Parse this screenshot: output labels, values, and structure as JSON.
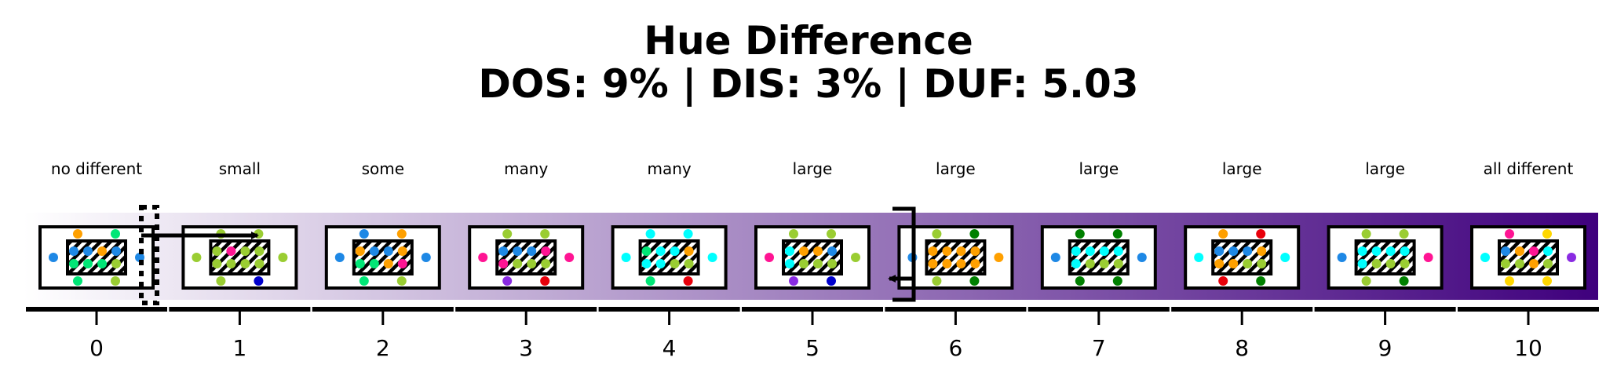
{
  "title": "Hue Difference",
  "subtitle": "DOS: 9% | DIS: 3% | DUF: 5.03",
  "gradient": {
    "start_color": "#ffffff",
    "end_color": "#3f007d"
  },
  "scale": [
    {
      "tick": "0",
      "label": "no different",
      "center": [
        "#1e88e5",
        "#1e88e5",
        "#ffa000",
        "#1e88e5",
        "#00e676",
        "#00e676",
        "#00e676",
        "#9acd32"
      ],
      "outer": {
        "left": "#1e88e5",
        "right": "#1e88e5",
        "top": [
          "#ffa000",
          "#00e676"
        ],
        "bottom": [
          "#00e676",
          "#9acd32"
        ]
      }
    },
    {
      "tick": "1",
      "label": "small",
      "center": [
        "#9acd32",
        "#ff1493",
        "#9acd32",
        "#9acd32",
        "#9acd32",
        "#9acd32",
        "#9acd32",
        "#9acd32"
      ],
      "outer": {
        "left": "#9acd32",
        "right": "#9acd32",
        "top": [
          "#9acd32",
          "#9acd32"
        ],
        "bottom": [
          "#9acd32",
          "#0000cd"
        ]
      }
    },
    {
      "tick": "2",
      "label": "some",
      "center": [
        "#ffa000",
        "#1e88e5",
        "#1e88e5",
        "#ffa000",
        "#00e676",
        "#00e676",
        "#ffa000",
        "#ff1493"
      ],
      "outer": {
        "left": "#1e88e5",
        "right": "#1e88e5",
        "top": [
          "#1e88e5",
          "#ffa000"
        ],
        "bottom": [
          "#00e676",
          "#9acd32"
        ]
      }
    },
    {
      "tick": "3",
      "label": "many",
      "center": [
        "#1e88e5",
        "#1e88e5",
        "#1e88e5",
        "#ff1493",
        "#ff1493",
        "#9acd32",
        "#9acd32",
        "#9acd32"
      ],
      "outer": {
        "left": "#ff1493",
        "right": "#ff1493",
        "top": [
          "#9acd32",
          "#9acd32"
        ],
        "bottom": [
          "#8a2be2",
          "#e8000b"
        ]
      }
    },
    {
      "tick": "4",
      "label": "many",
      "center": [
        "#00e676",
        "#00ffff",
        "#00ffff",
        "#ffa000",
        "#00ffff",
        "#00ffff",
        "#9acd32",
        "#9acd32"
      ],
      "outer": {
        "left": "#00ffff",
        "right": "#00ffff",
        "top": [
          "#00ffff",
          "#00ffff"
        ],
        "bottom": [
          "#00e676",
          "#e8000b"
        ]
      }
    },
    {
      "tick": "5",
      "label": "large",
      "center": [
        "#00ffff",
        "#ffa000",
        "#ffa000",
        "#1e88e5",
        "#00ffff",
        "#9acd32",
        "#9acd32",
        "#9acd32"
      ],
      "outer": {
        "left": "#ff1493",
        "right": "#9acd32",
        "top": [
          "#9acd32",
          "#9acd32"
        ],
        "bottom": [
          "#8a2be2",
          "#0000cd"
        ]
      }
    },
    {
      "tick": "6",
      "label": "large",
      "center": [
        "#ffa000",
        "#ffa000",
        "#ffa000",
        "#ffa000",
        "#ffa000",
        "#ffa000",
        "#ffa000",
        "#ffa000"
      ],
      "outer": {
        "left": "#1e88e5",
        "right": "#ffa000",
        "top": [
          "#9acd32",
          "#008000"
        ],
        "bottom": [
          "#9acd32",
          "#008000"
        ]
      }
    },
    {
      "tick": "7",
      "label": "large",
      "center": [
        "#00ffff",
        "#00ffff",
        "#00ffff",
        "#00ffff",
        "#00ffff",
        "#9acd32",
        "#9acd32",
        "#9acd32"
      ],
      "outer": {
        "left": "#1e88e5",
        "right": "#1e88e5",
        "top": [
          "#008000",
          "#008000"
        ],
        "bottom": [
          "#008000",
          "#008000"
        ]
      }
    },
    {
      "tick": "8",
      "label": "large",
      "center": [
        "#1e88e5",
        "#1e88e5",
        "#1e88e5",
        "#ffa000",
        "#ffa000",
        "#ffa000",
        "#9acd32",
        "#9acd32"
      ],
      "outer": {
        "left": "#00ffff",
        "right": "#00ffff",
        "top": [
          "#ffa000",
          "#e8000b"
        ],
        "bottom": [
          "#e8000b",
          "#008000"
        ]
      }
    },
    {
      "tick": "9",
      "label": "large",
      "center": [
        "#00ffff",
        "#00ffff",
        "#00ffff",
        "#00ffff",
        "#00ffff",
        "#9acd32",
        "#9acd32",
        "#9acd32"
      ],
      "outer": {
        "left": "#1e88e5",
        "right": "#ff1493",
        "top": [
          "#9acd32",
          "#9acd32"
        ],
        "bottom": [
          "#9acd32",
          "#008000"
        ]
      }
    },
    {
      "tick": "10",
      "label": "all different",
      "center": [
        "#1e88e5",
        "#ffa000",
        "#ff1493",
        "#00ffff",
        "#9acd32",
        "#9acd32",
        "#ffa000",
        "#9acd32"
      ],
      "outer": {
        "left": "#00ffff",
        "right": "#8a2be2",
        "top": [
          "#ff1493",
          "#ffd700"
        ],
        "bottom": [
          "#ffd700",
          "#ffd700"
        ]
      }
    }
  ]
}
